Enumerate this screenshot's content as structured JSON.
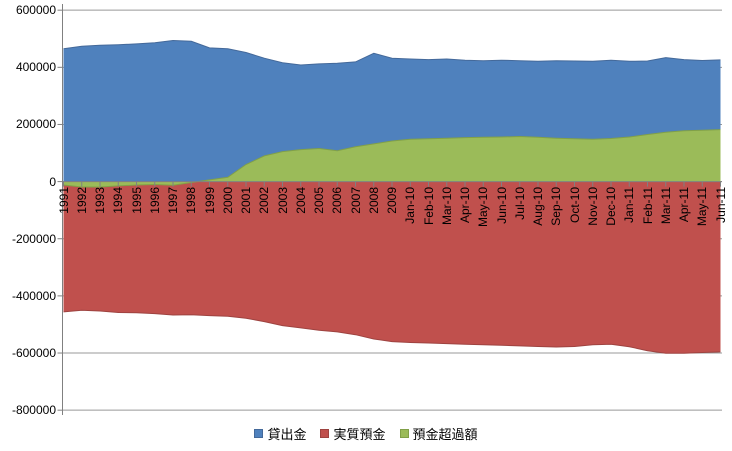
{
  "chart_data": {
    "type": "area",
    "subtype": "overlapping-areas-from-zero-baseline",
    "categories": [
      "1991",
      "1992",
      "1993",
      "1994",
      "1995",
      "1996",
      "1997",
      "1998",
      "1999",
      "2000",
      "2001",
      "2002",
      "2003",
      "2004",
      "2005",
      "2006",
      "2007",
      "2008",
      "2009",
      "Jan-10",
      "Feb-10",
      "Mar-10",
      "Apr-10",
      "May-10",
      "Jun-10",
      "Jul-10",
      "Aug-10",
      "Sep-10",
      "Oct-10",
      "Nov-10",
      "Dec-10",
      "Jan-11",
      "Feb-11",
      "Mar-11",
      "Apr-11",
      "May-11",
      "Jun-11"
    ],
    "series": [
      {
        "key": "loans",
        "name": "貸出金",
        "color": "#4F81BD",
        "border": "#44699A",
        "values": [
          465000,
          474000,
          477000,
          479000,
          482000,
          486000,
          494000,
          491000,
          468000,
          465000,
          452000,
          432000,
          416000,
          408000,
          412000,
          414000,
          419000,
          449000,
          432000,
          429000,
          427000,
          429000,
          425000,
          423000,
          425000,
          423000,
          421000,
          423000,
          422000,
          421000,
          425000,
          421000,
          422000,
          434000,
          427000,
          424000,
          426000
        ]
      },
      {
        "key": "deposits",
        "name": "実質預金",
        "color": "#C0504D",
        "border": "#9E4340",
        "values": [
          -456000,
          -450000,
          -453000,
          -458000,
          -459000,
          -462000,
          -467000,
          -466000,
          -469000,
          -471000,
          -478000,
          -490000,
          -504000,
          -512000,
          -520000,
          -526000,
          -536000,
          -551000,
          -560000,
          -563000,
          -565000,
          -567000,
          -569000,
          -571000,
          -573000,
          -575000,
          -577000,
          -579000,
          -577000,
          -571000,
          -569000,
          -578000,
          -592000,
          -601000,
          -601000,
          -598000,
          -596000
        ]
      },
      {
        "key": "surplus",
        "name": "預金超過額",
        "color": "#9BBB59",
        "border": "#81A048",
        "values": [
          -12000,
          -19000,
          -19000,
          -15000,
          -12000,
          -10000,
          -13000,
          -3000,
          6000,
          15000,
          60000,
          90000,
          105000,
          112000,
          116000,
          108000,
          122000,
          132000,
          142000,
          148000,
          150000,
          152000,
          154000,
          155000,
          156000,
          158000,
          155000,
          152000,
          150000,
          148000,
          151000,
          156000,
          165000,
          173000,
          178000,
          180000,
          182000
        ]
      }
    ],
    "ytick_labels": [
      "600000",
      "400000",
      "200000",
      "0",
      "-200000",
      "-400000",
      "-600000",
      "-800000"
    ],
    "ylim": [
      -800000,
      600000
    ],
    "ytick_step": 200000,
    "grid": "horizontal-major",
    "legend_position": "bottom",
    "axis_color": "#808080",
    "gridline_color": "#999999",
    "text_color": "#000000",
    "background": "#FFFFFF"
  }
}
